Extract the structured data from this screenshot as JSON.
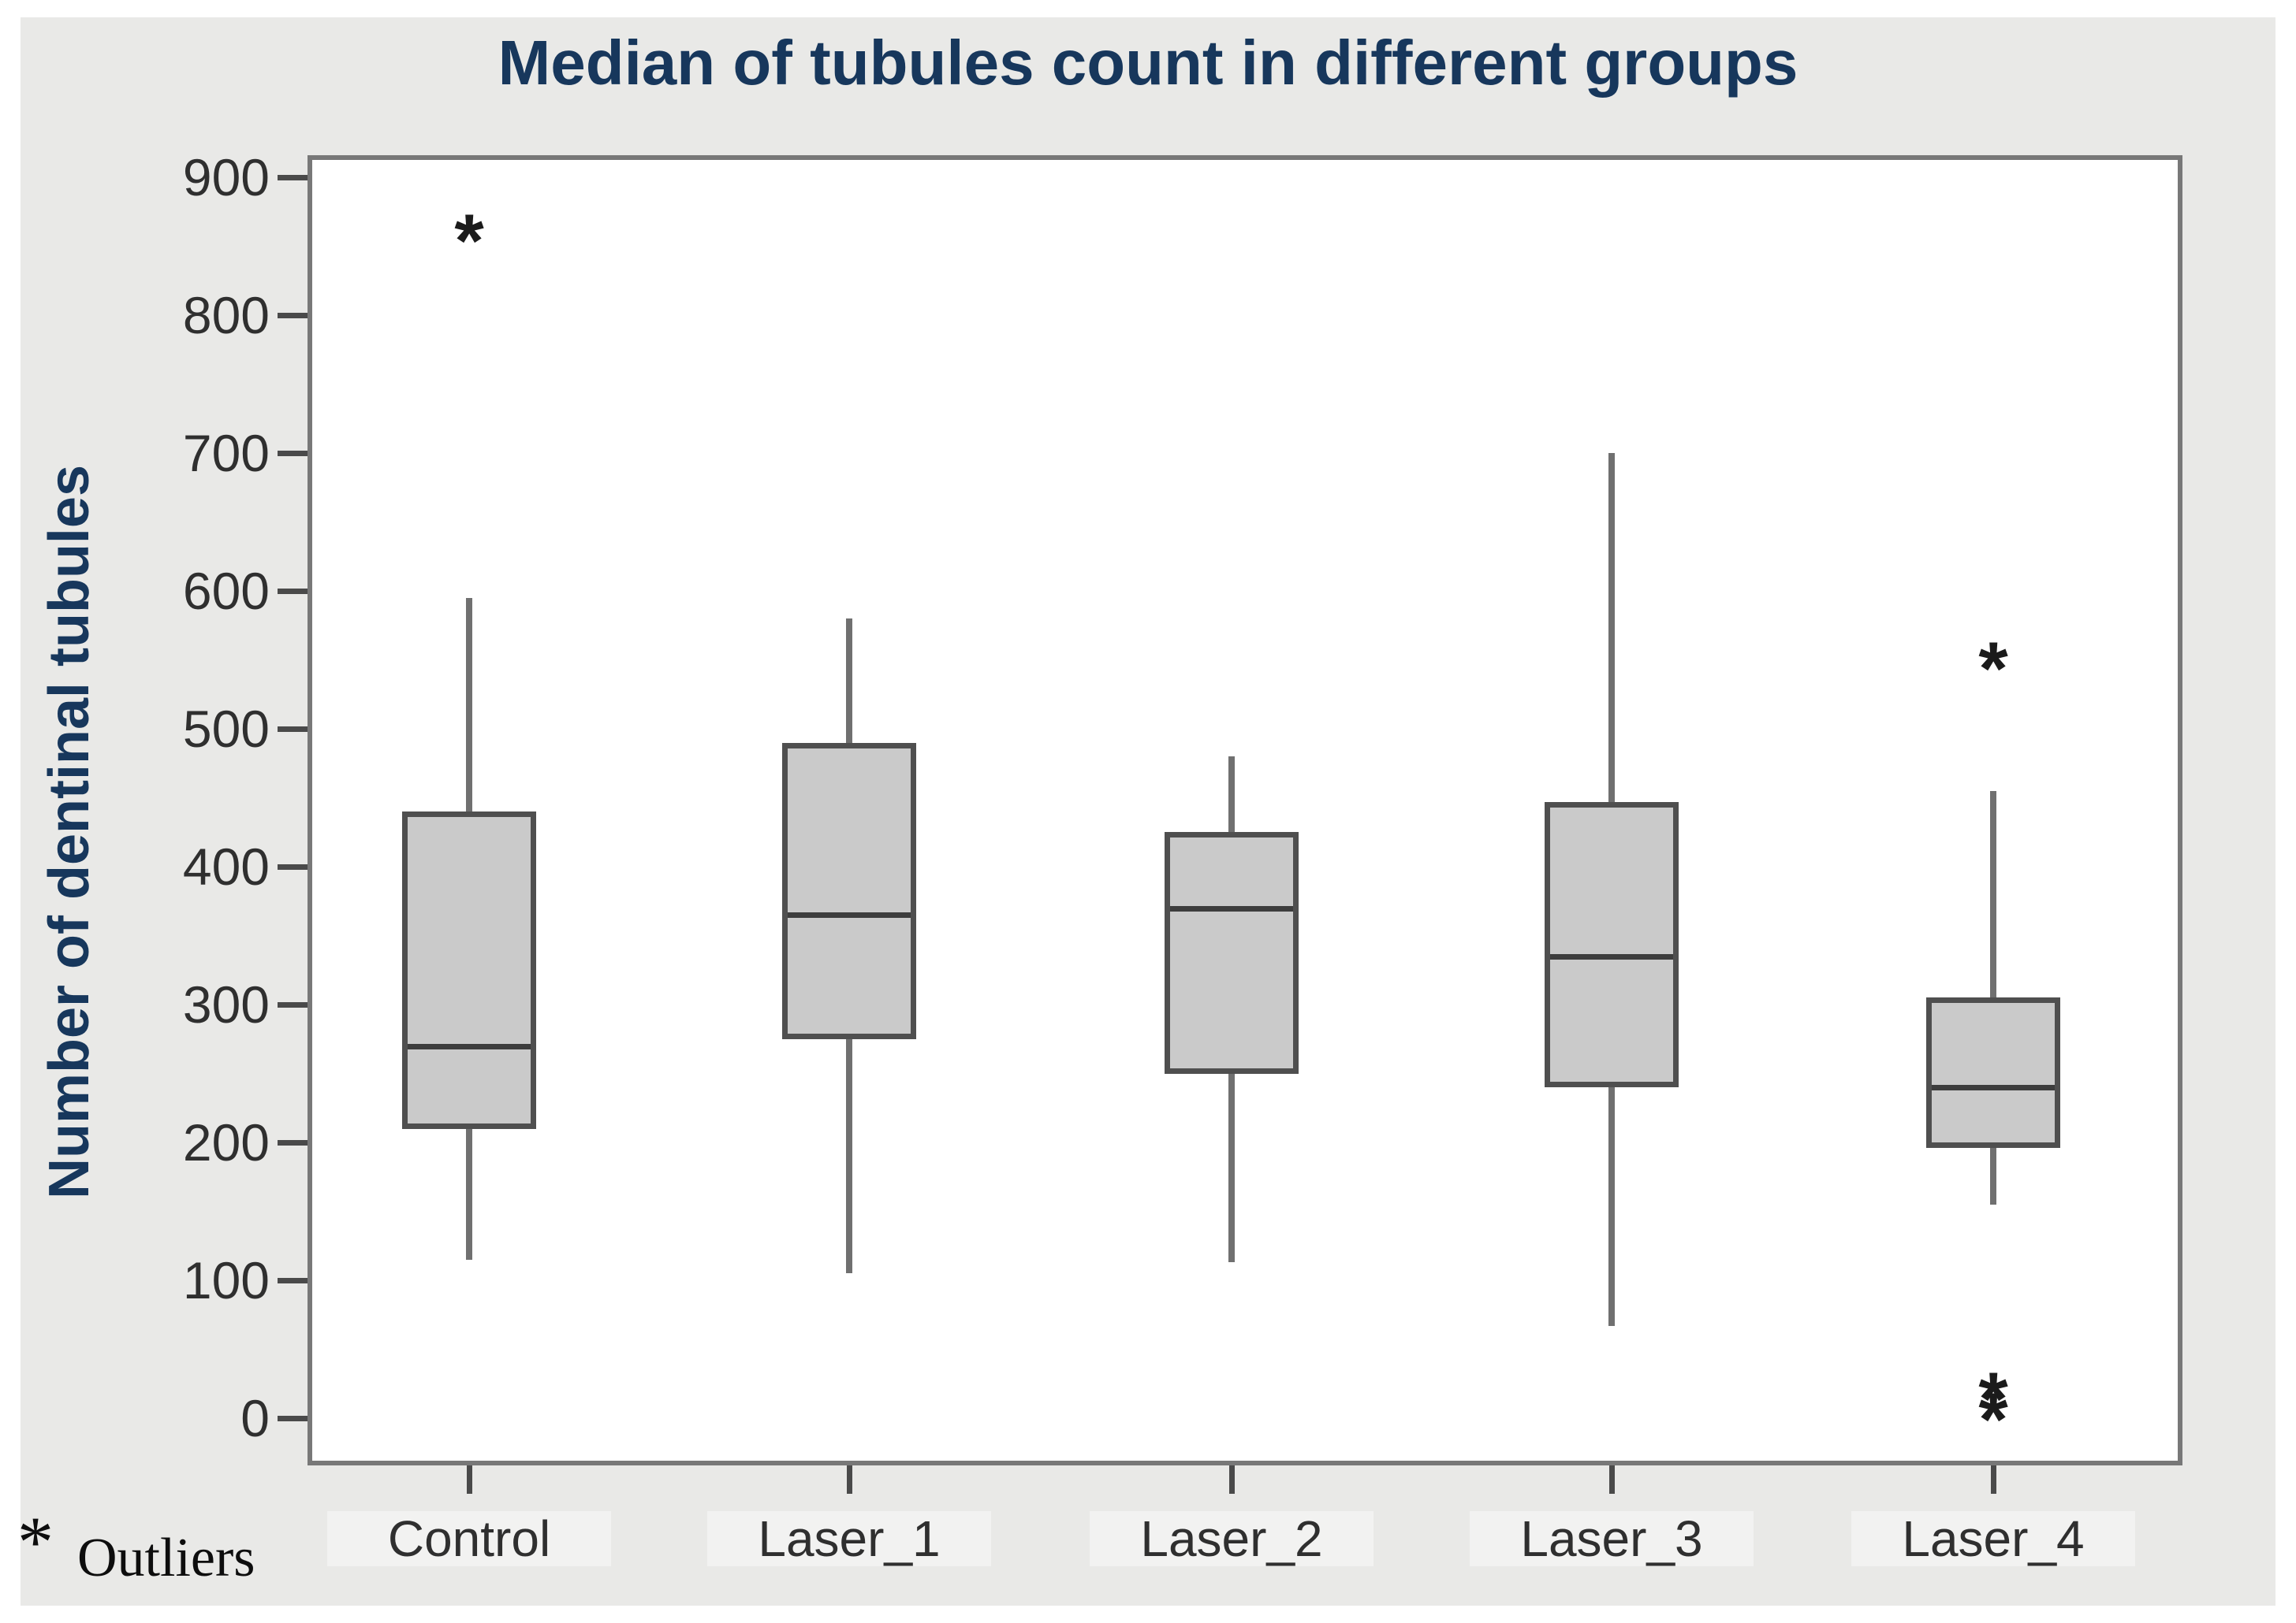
{
  "figure": {
    "title": "Median of tubules count in different groups",
    "y_axis_label": "Number of dentinal tubules",
    "outlier_symbol": "*",
    "outlier_note": "Outliers",
    "colors": {
      "figure_bg": "#e9e9e7",
      "plot_bg": "#ffffff",
      "plot_border": "#787878",
      "box_fill": "#cacaca",
      "box_border": "#4f4f4f",
      "median_line": "#3d3d3d",
      "whisker": "#707070",
      "title_text": "#17375c",
      "tick_text": "#2f2f2f",
      "outlier_marker": "#1b1b1b"
    }
  },
  "chart_data": {
    "type": "boxplot",
    "title": "Median of tubules count in different groups",
    "xlabel": "",
    "ylabel": "Number of dentinal tubules",
    "categories": [
      "Control",
      "Laser_1",
      "Laser_2",
      "Laser_3",
      "Laser_4"
    ],
    "y_ticks": [
      900,
      800,
      700,
      600,
      500,
      400,
      300,
      200,
      100,
      0
    ],
    "ylim": [
      -35,
      917
    ],
    "grid": false,
    "legend_note": "* Outliers",
    "series": [
      {
        "name": "Control",
        "whisker_low": 115,
        "q1": 210,
        "median": 270,
        "q3": 440,
        "whisker_high": 595,
        "outliers": [
          860
        ]
      },
      {
        "name": "Laser_1",
        "whisker_low": 105,
        "q1": 275,
        "median": 365,
        "q3": 490,
        "whisker_high": 580,
        "outliers": []
      },
      {
        "name": "Laser_2",
        "whisker_low": 113,
        "q1": 250,
        "median": 370,
        "q3": 425,
        "whisker_high": 480,
        "outliers": []
      },
      {
        "name": "Laser_3",
        "whisker_low": 67,
        "q1": 240,
        "median": 335,
        "q3": 447,
        "whisker_high": 700,
        "outliers": []
      },
      {
        "name": "Laser_4",
        "whisker_low": 155,
        "q1": 196,
        "median": 240,
        "q3": 305,
        "whisker_high": 455,
        "outliers": [
          550,
          20,
          5
        ]
      }
    ]
  }
}
